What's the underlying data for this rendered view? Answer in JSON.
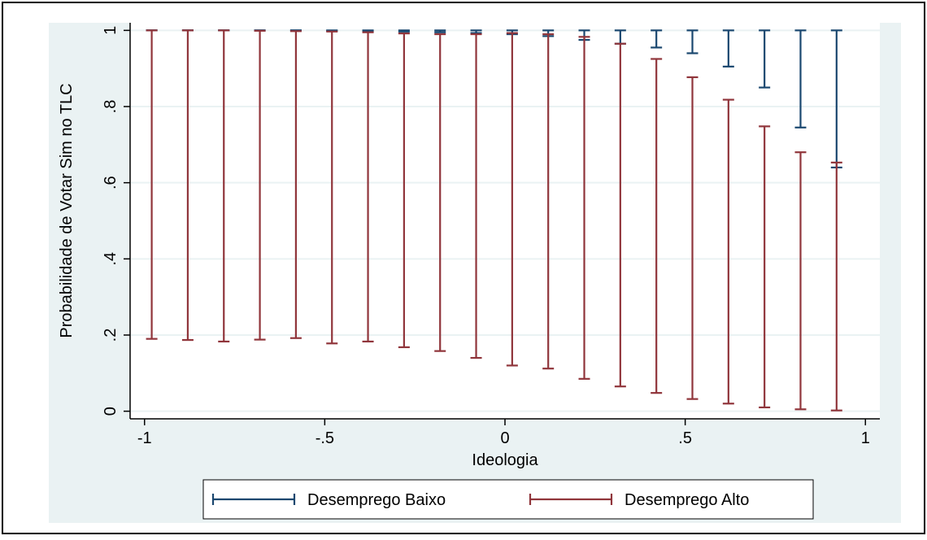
{
  "colors": {
    "frame": "#000000",
    "outer_bg": "#eaf2f3",
    "plot_bg": "#ffffff",
    "grid": "#eaf2f3",
    "axis": "#000000",
    "series_low": "#1a476f",
    "series_high": "#90353b"
  },
  "chart_data": {
    "type": "errorbar",
    "xlabel": "Ideologia",
    "ylabel": "Probabilidade de Votar Sim no TLC",
    "xlim": [
      -1.04,
      1.04
    ],
    "ylim": [
      -0.02,
      1.02
    ],
    "xticks": [
      -1,
      -0.5,
      0,
      0.5,
      1
    ],
    "xtick_labels": [
      "-1",
      "-.5",
      "0",
      ".5",
      "1"
    ],
    "yticks": [
      0,
      0.2,
      0.4,
      0.6,
      0.8,
      1
    ],
    "ytick_labels": [
      "0",
      ".2",
      ".4",
      ".6",
      ".8",
      "1"
    ],
    "grid": true,
    "legend_position": "bottom",
    "x": [
      -0.98,
      -0.88,
      -0.78,
      -0.68,
      -0.58,
      -0.48,
      -0.38,
      -0.28,
      -0.18,
      -0.08,
      0.02,
      0.12,
      0.22,
      0.32,
      0.42,
      0.52,
      0.62,
      0.72,
      0.82,
      0.92
    ],
    "series": [
      {
        "name": "Desemprego Baixo",
        "color": "#1a476f",
        "lower": [
          1.0,
          1.0,
          1.0,
          1.0,
          1.0,
          0.999,
          0.998,
          0.997,
          0.995,
          0.993,
          0.99,
          0.985,
          0.975,
          0.965,
          0.955,
          0.94,
          0.905,
          0.85,
          0.745,
          0.64
        ],
        "upper": [
          1,
          1,
          1,
          1,
          1,
          1,
          1,
          1,
          1,
          1,
          1,
          1,
          1,
          1,
          1,
          1,
          1,
          1,
          1,
          1
        ]
      },
      {
        "name": "Desemprego Alto",
        "color": "#90353b",
        "lower": [
          0.19,
          0.187,
          0.183,
          0.188,
          0.192,
          0.178,
          0.183,
          0.168,
          0.158,
          0.14,
          0.12,
          0.112,
          0.085,
          0.065,
          0.048,
          0.032,
          0.02,
          0.01,
          0.005,
          0.002
        ],
        "upper": [
          1.0,
          1.0,
          1.0,
          0.999,
          0.998,
          0.997,
          0.995,
          0.992,
          0.99,
          0.99,
          0.993,
          0.99,
          0.983,
          0.965,
          0.925,
          0.877,
          0.818,
          0.748,
          0.68,
          0.653
        ]
      }
    ]
  }
}
